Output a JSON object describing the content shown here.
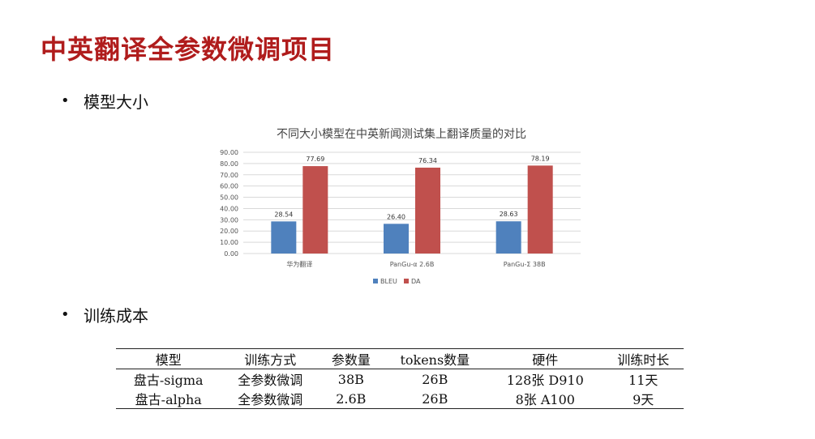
{
  "slide": {
    "title": "中英翻译全参数微调项目",
    "bullets": [
      "模型大小",
      "训练成本"
    ],
    "bullet_symbol": "•"
  },
  "chart_data": {
    "type": "bar",
    "title": "不同大小模型在中英新闻测试集上翻译质量的对比",
    "categories": [
      "华为翻译",
      "PanGu-α 2.6B",
      "PanGu-Σ 38B"
    ],
    "series": [
      {
        "name": "BLEU",
        "values": [
          28.54,
          26.4,
          28.63
        ],
        "color": "#4f81bd"
      },
      {
        "name": "DA",
        "values": [
          77.69,
          76.34,
          78.19
        ],
        "color": "#c0504d"
      }
    ],
    "ylim": [
      0,
      90
    ],
    "yticks": [
      "0.00",
      "10.00",
      "20.00",
      "30.00",
      "40.00",
      "50.00",
      "60.00",
      "70.00",
      "80.00",
      "90.00"
    ],
    "data_labels": [
      [
        "28.54",
        "26.40",
        "28.63"
      ],
      [
        "77.69",
        "76.34",
        "78.19"
      ]
    ],
    "grid": true,
    "legend_position": "bottom"
  },
  "table": {
    "headers": [
      "模型",
      "训练方式",
      "参数量",
      "tokens数量",
      "硬件",
      "训练时长"
    ],
    "rows": [
      [
        "盘古-sigma",
        "全参数微调",
        "38B",
        "26B",
        "128张 D910",
        "11天"
      ],
      [
        "盘古-alpha",
        "全参数微调",
        "2.6B",
        "26B",
        "8张 A100",
        "9天"
      ]
    ]
  }
}
